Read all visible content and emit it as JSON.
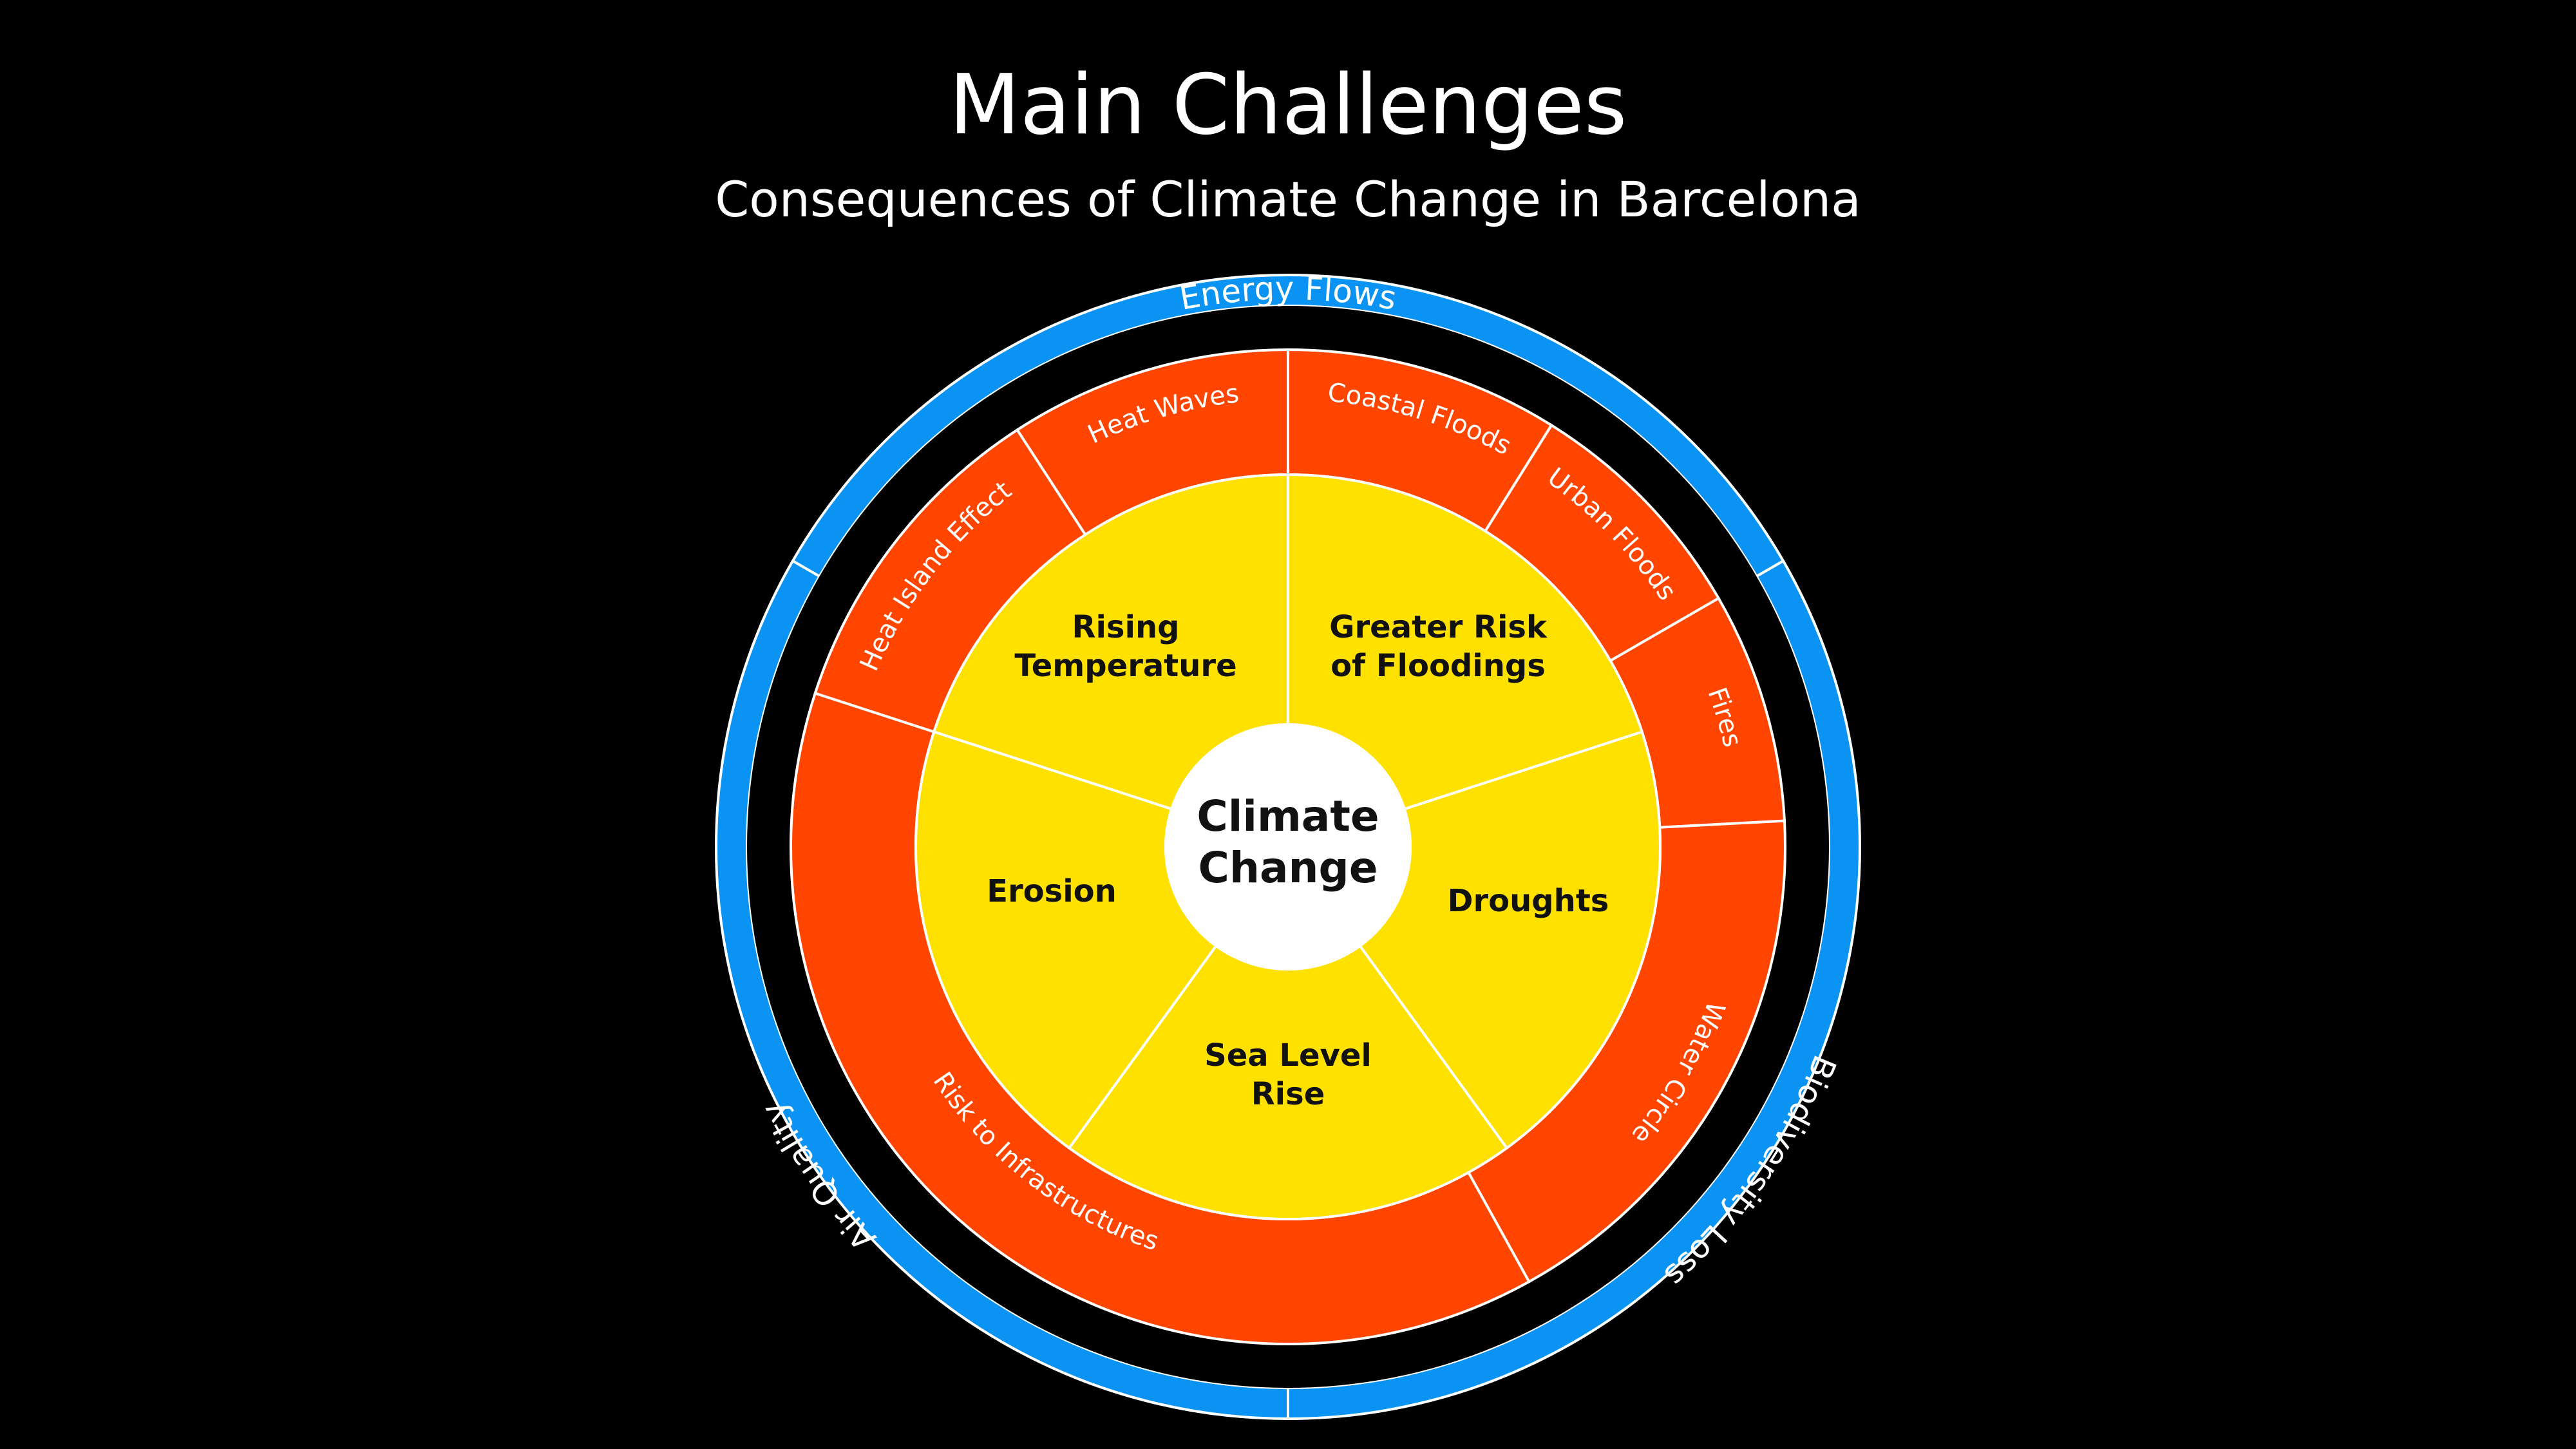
{
  "header": {
    "title": "Main Challenges",
    "subtitle": "Consequences of Climate Change in Barcelona"
  },
  "colors": {
    "background": "#000000",
    "blue": "#0A93F2",
    "orange": "#FF4500",
    "yellow": "#FFE100",
    "core": "#FFFFFF",
    "divider": "#FFFFFF"
  },
  "center": {
    "line1": "Climate",
    "line2": "Change"
  },
  "outer_ring": [
    {
      "label": "Energy Flows"
    },
    {
      "label": "Biodiversity Loss"
    },
    {
      "label": "Air Quality"
    }
  ],
  "middle_ring": [
    {
      "label": "Heat Waves"
    },
    {
      "label": "Coastal Floods"
    },
    {
      "label": "Urban Floods"
    },
    {
      "label": "Fires"
    },
    {
      "label": "Water Circle"
    },
    {
      "label": "Risk to Infrastructures"
    },
    {
      "label": "Heat Island Effect"
    }
  ],
  "inner_ring": [
    {
      "line1": "Rising",
      "line2": "Temperature"
    },
    {
      "line1": "Greater Risk",
      "line2": "of Floodings"
    },
    {
      "line1": "Droughts",
      "line2": ""
    },
    {
      "line1": "Sea Level",
      "line2": "Rise"
    },
    {
      "line1": "Erosion",
      "line2": ""
    }
  ]
}
